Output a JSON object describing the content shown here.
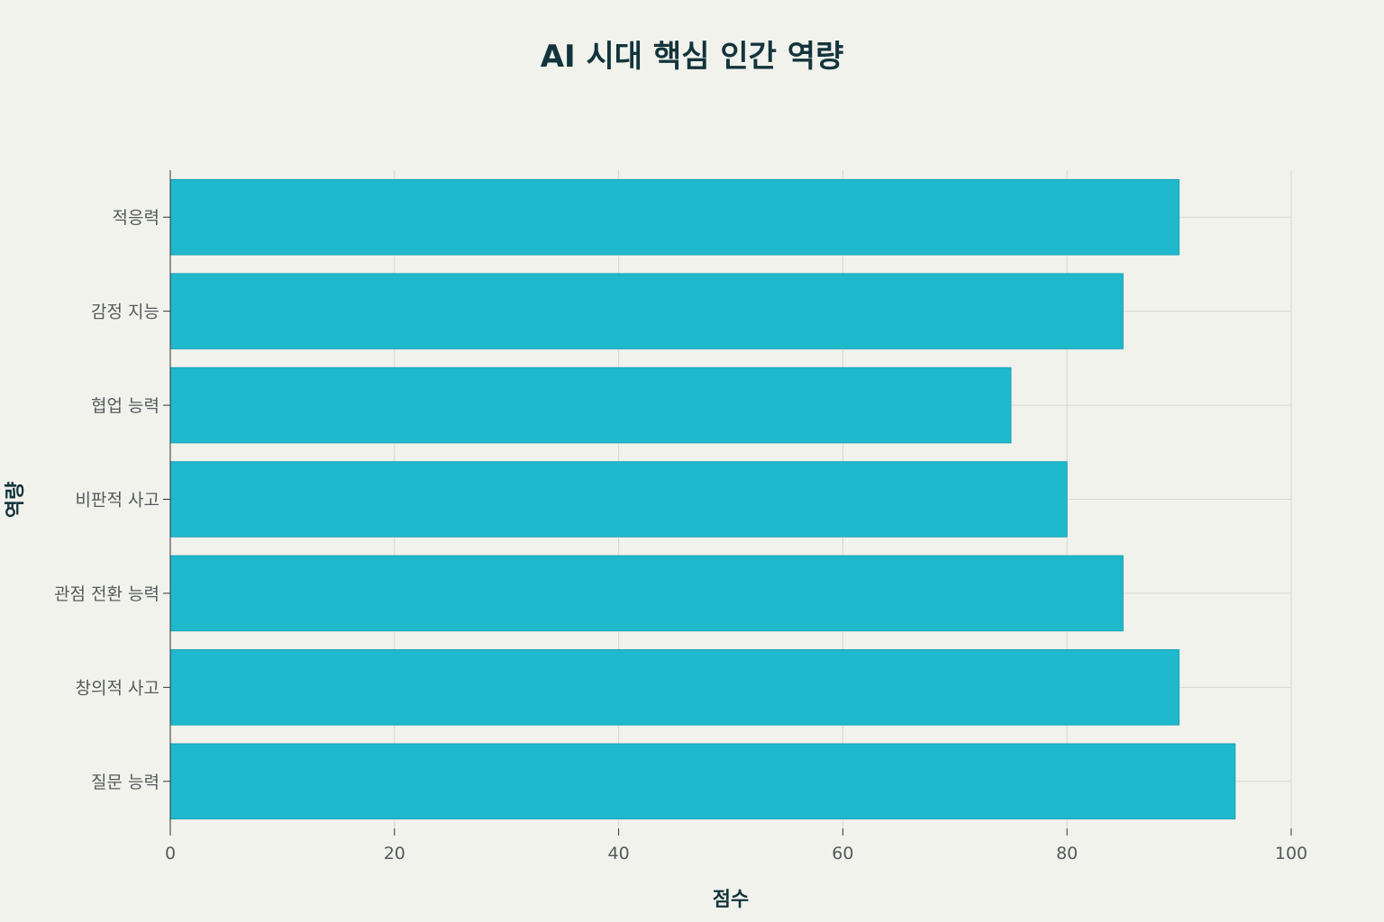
{
  "chart_data": {
    "type": "bar",
    "orientation": "horizontal",
    "title": "AI 시대 핵심 인간 역량",
    "xlabel": "점수",
    "ylabel": "역량",
    "categories": [
      "적응력",
      "감정 지능",
      "협업 능력",
      "비판적 사고",
      "관점 전환 능력",
      "창의적 사고",
      "질문 능력"
    ],
    "values": [
      90,
      85,
      75,
      80,
      85,
      90,
      95
    ],
    "xlim": [
      0,
      100
    ],
    "xticks": [
      0,
      20,
      40,
      60,
      80,
      100
    ],
    "grid": true,
    "legend": false,
    "colors": {
      "bar": "#1fb8cd",
      "bar_edge": "#1aa3b6",
      "background": "#f2f2ed",
      "text": "#13343b"
    }
  }
}
